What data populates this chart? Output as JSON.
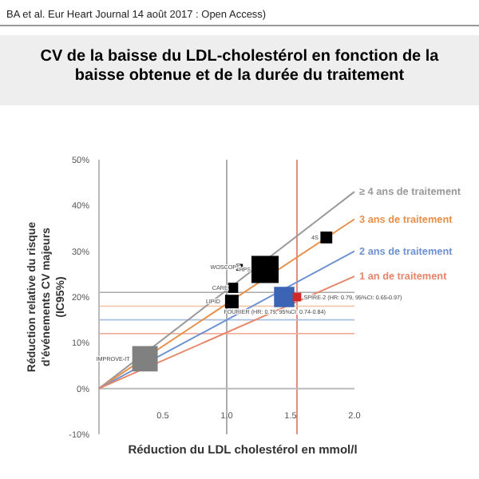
{
  "chart_data": {
    "type": "bubble",
    "title": "CV de la baisse du LDL-cholestérol en fonction de la baisse obtenue et de la durée du traitement",
    "subtitle": "BA et al. Eur Heart Journal 14 août 2017 : Open Access)",
    "xlabel": "Réduction du LDL cholestérol en mmol/l",
    "ylabel": "Réduction relative du risque d'événements CV majeurs (IC95%)",
    "xlim": [
      0,
      2
    ],
    "xticks": [
      {
        "value": 0.5,
        "label": "0.5"
      },
      {
        "value": 1,
        "label": "1.0"
      },
      {
        "value": 1.5,
        "label": "1.5"
      },
      {
        "value": 2,
        "label": "2.0"
      }
    ],
    "ylim": [
      -10,
      50
    ],
    "yticks": [
      {
        "value": -10,
        "label": "-10%"
      },
      {
        "value": 0,
        "label": "0%"
      },
      {
        "value": 10,
        "label": "10%"
      },
      {
        "value": 20,
        "label": "20%"
      },
      {
        "value": 30,
        "label": "30%"
      },
      {
        "value": 40,
        "label": "40%"
      },
      {
        "value": 50,
        "label": "50%"
      }
    ],
    "grid": false,
    "legend": false,
    "series": [
      {
        "type": "line",
        "name": "≥ 4 ans de traitement",
        "color": "#9a9a9a",
        "x": [
          0,
          2
        ],
        "values": [
          0,
          43
        ]
      },
      {
        "type": "line",
        "name": "3 ans de traitement",
        "color": "#e8904a",
        "x": [
          0,
          2
        ],
        "values": [
          0,
          37
        ]
      },
      {
        "type": "line",
        "name": "2 ans de traitement",
        "color": "#6f93d0",
        "x": [
          0,
          2
        ],
        "values": [
          0,
          30
        ]
      },
      {
        "type": "line",
        "name": "1 an de traitement",
        "color": "#e6866a",
        "x": [
          0,
          2
        ],
        "values": [
          0,
          24.5
        ]
      },
      {
        "marker": "square",
        "x": [
          0.36,
          1.05,
          1.04,
          1.1,
          1.3,
          1.78,
          1.45,
          1.55
        ],
        "values": [
          6.5,
          22,
          19,
          26.5,
          26,
          33,
          20,
          20
        ],
        "sizes": [
          0.88,
          0.14,
          0.25,
          0.06,
          1,
          0.19,
          0.56,
          0.1
        ],
        "colors": [
          "#808080",
          "#000000",
          "#000000",
          "#000000",
          "#000000",
          "#000000",
          "#3c64b4",
          "#d02828"
        ]
      }
    ],
    "ref_lines": [
      {
        "axis": "x",
        "value": 1,
        "color": "#999999"
      },
      {
        "axis": "x",
        "value": 1.55,
        "color": "#e07060"
      },
      {
        "axis": "y",
        "value": 21,
        "color": "#aaaaaa"
      },
      {
        "axis": "y",
        "value": 18,
        "color": "#f0c0a0"
      },
      {
        "axis": "y",
        "value": 15,
        "color": "#a8c0e0"
      },
      {
        "axis": "y",
        "value": 12,
        "color": "#f0b0a0"
      }
    ],
    "annotations": [
      {
        "text": "IMPROVE-IT",
        "x": 0.36,
        "y": 6.5
      },
      {
        "text": "CARE",
        "x": 1.05,
        "y": 22
      },
      {
        "text": "LIPID",
        "x": 1.04,
        "y": 19
      },
      {
        "text": "WOSCOPS",
        "x": 1.1,
        "y": 26.5
      },
      {
        "text": "HPS",
        "x": 1.3,
        "y": 26
      },
      {
        "text": "4S",
        "x": 1.78,
        "y": 33
      },
      {
        "text": "SPIRE-2 (HR: 0.79, 95%CI: 0.65-0.97)",
        "x": 1.55,
        "y": 20
      },
      {
        "text": "FOURIER (HR: 0.79, 95%CI: 0.74-0.84)",
        "x": 1.45,
        "y": 20
      }
    ]
  }
}
